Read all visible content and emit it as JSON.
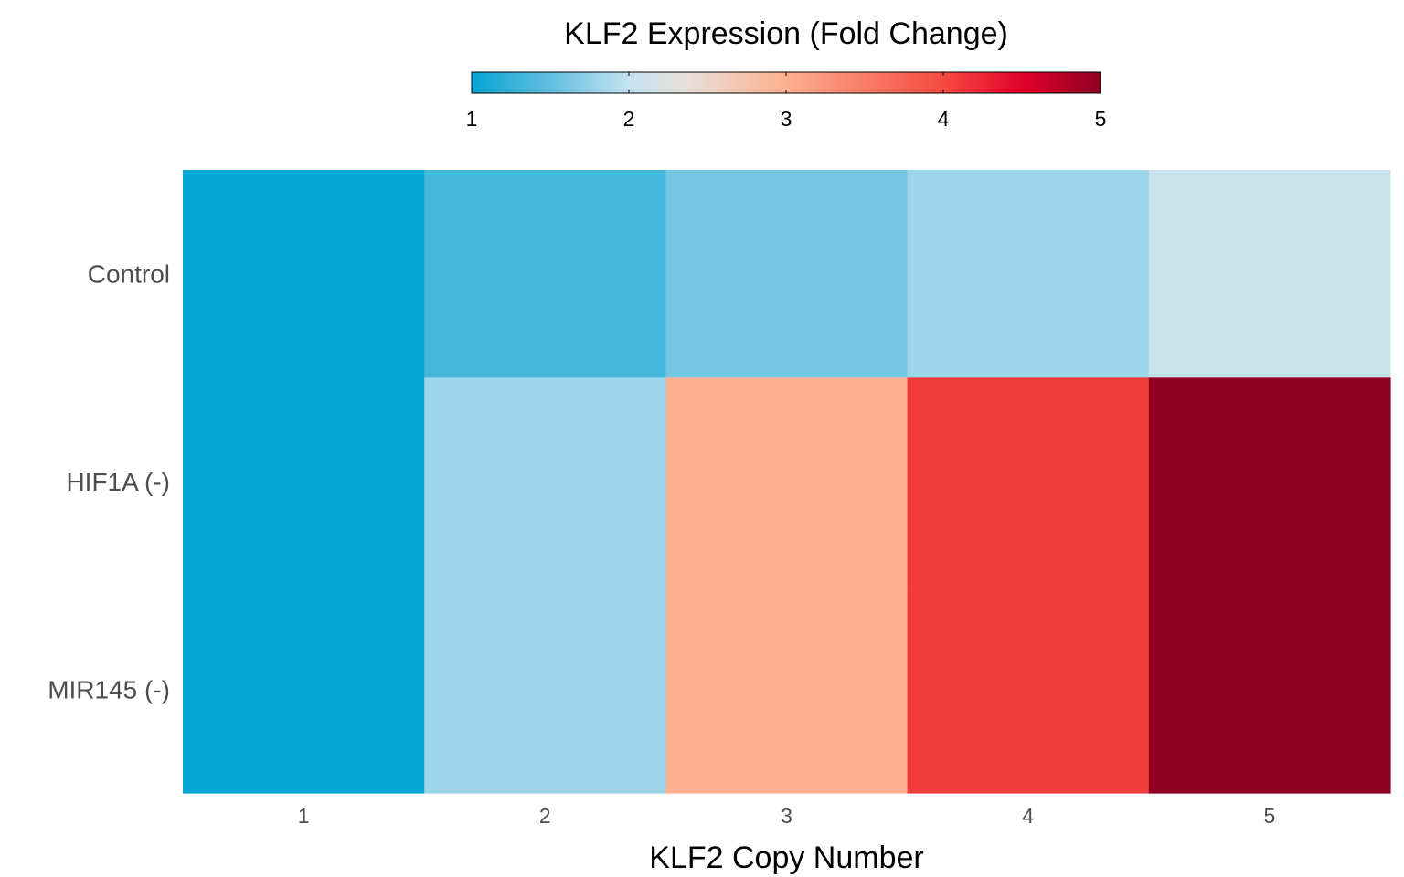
{
  "chart_data": {
    "type": "heatmap",
    "legend_title": "KLF2 Expression (Fold Change)",
    "legend_position": "top",
    "legend_range": [
      1,
      5
    ],
    "legend_ticks": [
      "1",
      "2",
      "3",
      "4",
      "5"
    ],
    "legend_tick_values": [
      1,
      2,
      3,
      4,
      5
    ],
    "xlabel": "KLF2 Copy Number",
    "ylabel": "",
    "columns": [
      "1",
      "2",
      "3",
      "4",
      "5"
    ],
    "rows": [
      "Control",
      "HIF1A (-)",
      "MIR145 (-)"
    ],
    "values": [
      [
        1.0,
        1.35,
        1.6,
        1.8,
        2.05
      ],
      [
        1.0,
        1.8,
        3.0,
        4.1,
        5.0
      ],
      [
        1.0,
        1.8,
        3.0,
        4.1,
        5.0
      ]
    ],
    "colorscale": [
      [
        0.0,
        "#05a5d4"
      ],
      [
        0.125,
        "#62bfe0"
      ],
      [
        0.25,
        "#c4e3f1"
      ],
      [
        0.34,
        "#e8e0da"
      ],
      [
        0.5,
        "#fdb08f"
      ],
      [
        0.75,
        "#f54a40"
      ],
      [
        0.88,
        "#e0002a"
      ],
      [
        1.0,
        "#900023"
      ]
    ],
    "grid": false
  }
}
